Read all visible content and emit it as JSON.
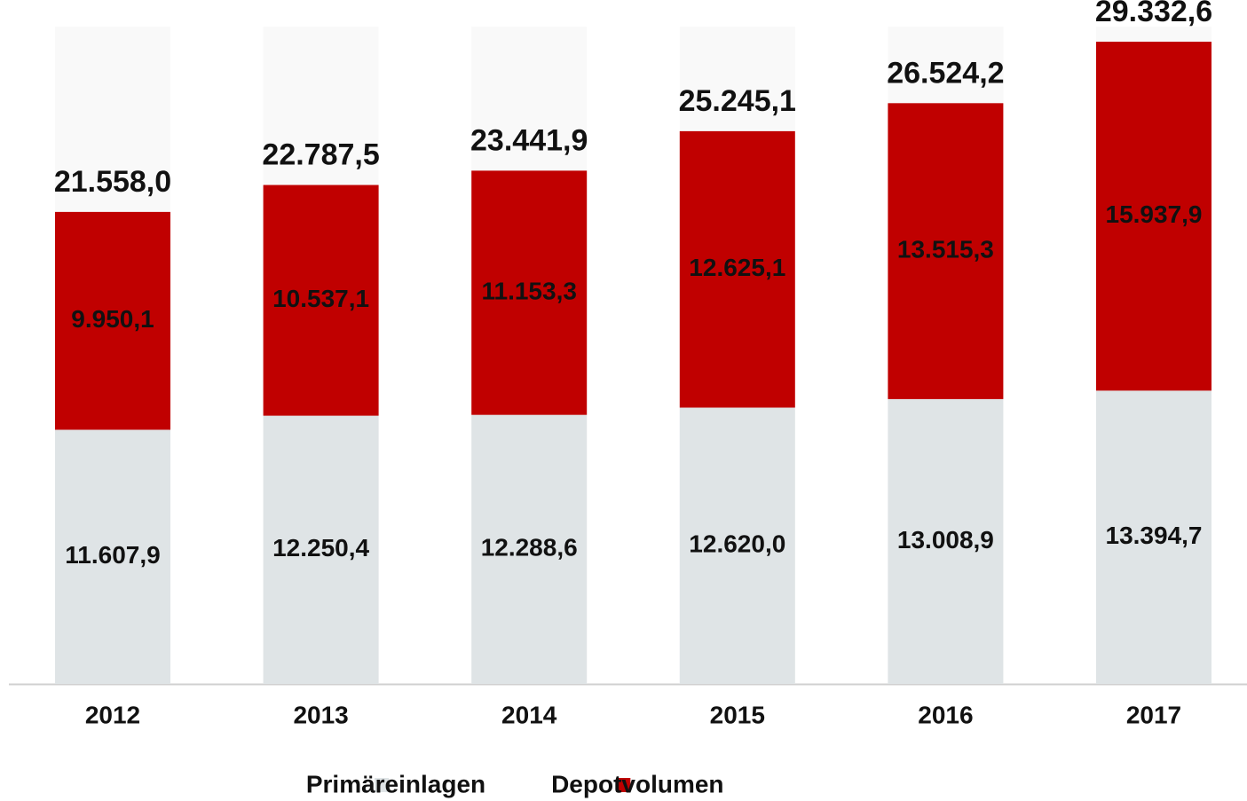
{
  "chart_data": {
    "type": "stacked_bar",
    "categories": [
      "2012",
      "2013",
      "2014",
      "2015",
      "2016",
      "2017"
    ],
    "series": [
      {
        "name": "Primäreinlagen",
        "color": "#dfe4e6",
        "label_color": "#111111",
        "values": [
          11607.9,
          12250.4,
          12288.6,
          12620.0,
          13008.9,
          13394.7
        ],
        "value_labels": [
          "11.607,9",
          "12.250,4",
          "12.288,6",
          "12.620,0",
          "13.008,9",
          "13.394,7"
        ]
      },
      {
        "name": "Depotvolumen",
        "color": "#c00000",
        "label_color": "#ffffff",
        "values": [
          9950.1,
          10537.1,
          11153.3,
          12625.1,
          13515.3,
          15937.9
        ],
        "value_labels": [
          "9.950,1",
          "10.537,1",
          "11.153,3",
          "12.625,1",
          "13.515,3",
          "15.937,9"
        ]
      }
    ],
    "totals": {
      "values": [
        21558.0,
        22787.5,
        23441.9,
        25245.1,
        26524.2,
        29332.6
      ],
      "value_labels": [
        "21.558,0",
        "22.787,5",
        "23.441,9",
        "25.245,1",
        "26.524,2",
        "29.332,6"
      ]
    },
    "legend": "bottom"
  }
}
